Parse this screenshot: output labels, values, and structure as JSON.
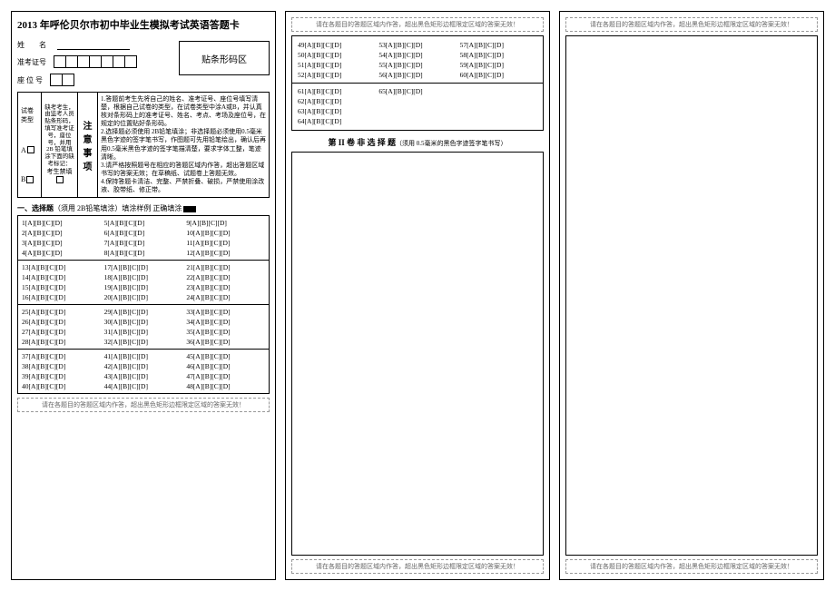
{
  "title": "2013 年呼伦贝尔市初中毕业生模拟考试英语答题卡",
  "labels": {
    "name": "姓　名",
    "ticket": "准考证号",
    "seat": "座 位 号",
    "barcode": "贴条形码区",
    "paperType": "试卷类型",
    "noFill": "考生禁填",
    "notice": "注意事项",
    "instLeft": "缺考考生，由监考人员贴条形码，填写准考证号，座位号，并用2B 铅笔填涂下面的缺考标记："
  },
  "instructions": "1.答题前考生先将自己的姓名、准考证号、座位号填写清楚，根据自己试卷的类型，在试卷类型中涂A或B，并认真核对条形码上的准考证号、姓名、考点、考场及座位号，在规定的位置贴好条形码。\n2.选择题必须使用 2B铅笔填涂；非选择题必须使用0.5毫米黑色字迹的签字笔书写，作图题可先用铅笔绘出，确认后再用0.5毫米黑色字迹的签字笔描清楚，要求字体工整，笔迹清晰。\n3.请严格按照题号在相应的答题区域内作答，超出答题区域书写的答案无效；在草稿纸、试题卷上答题无效。\n4.保持答题卡清洁、完整、严禁折叠、破损，严禁使用涂改液、胶带纸、修正带。",
  "section1": {
    "title": "一、选择题",
    "note": "（须用 2B铅笔填涂）填涂样例 正确填涂",
    "opts": "[A][B][C][D]"
  },
  "section2": {
    "title": "第 II 卷 非 选 择 题",
    "note": "（须用 0.5毫米的黑色字迹签字笔书写）"
  },
  "warning": "请在各题目的答题区域内作答，超出黑色矩形边框限定区域的答案无效！",
  "groups1": [
    [
      1,
      2,
      3,
      4
    ],
    [
      5,
      6,
      7,
      8
    ],
    [
      9,
      10,
      11,
      12
    ]
  ],
  "groups2": [
    [
      13,
      14,
      15,
      16
    ],
    [
      17,
      18,
      19,
      20
    ],
    [
      21,
      22,
      23,
      24
    ]
  ],
  "groups3": [
    [
      25,
      26,
      27,
      28
    ],
    [
      29,
      30,
      31,
      32
    ],
    [
      33,
      34,
      35,
      36
    ]
  ],
  "groups4": [
    [
      37,
      38,
      39,
      40
    ],
    [
      41,
      42,
      43,
      44
    ],
    [
      45,
      46,
      47,
      48
    ]
  ],
  "panel2rows": [
    [
      49,
      53,
      57
    ],
    [
      50,
      54,
      58
    ],
    [
      51,
      55,
      59
    ],
    [
      52,
      56,
      60
    ]
  ],
  "panel2rows2": [
    [
      61,
      65
    ],
    [
      62
    ],
    [
      63
    ],
    [
      64
    ]
  ]
}
